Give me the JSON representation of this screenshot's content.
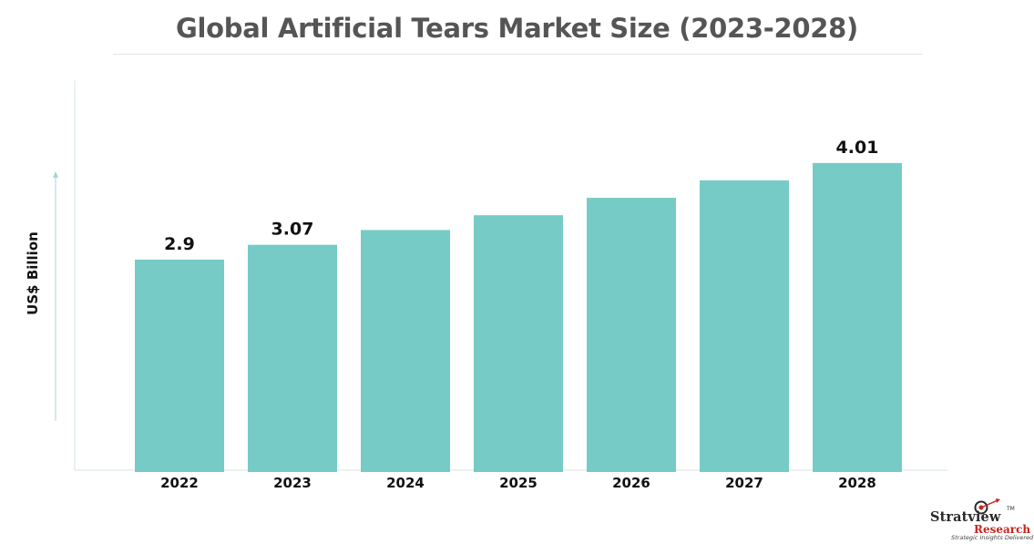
{
  "chart_data": {
    "type": "bar",
    "title": "Global Artificial Tears Market Size (2023-2028)",
    "ylabel": "US$ Billion",
    "xlabel": "",
    "categories": [
      "2022",
      "2023",
      "2024",
      "2025",
      "2026",
      "2027",
      "2028"
    ],
    "values": [
      2.9,
      3.07,
      3.24,
      3.41,
      3.61,
      3.81,
      4.01
    ],
    "data_labels": [
      "2.9",
      "3.07",
      "",
      "",
      "",
      "",
      "4.01"
    ],
    "grid": false,
    "colors": {
      "bar": "#76cbc6",
      "axis": "#cfe3e3",
      "label": "#111111"
    }
  },
  "logo": {
    "brand": "Stratview",
    "trademark": "TM",
    "sub": "Research",
    "tagline": "Strategic Insights Delivered"
  }
}
